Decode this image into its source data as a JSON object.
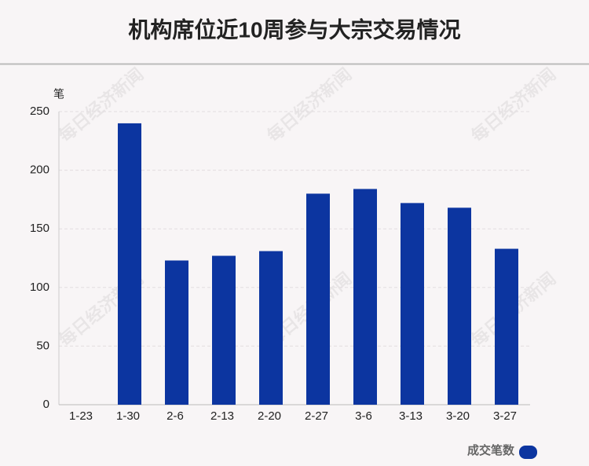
{
  "chart_data": {
    "type": "bar",
    "title": "机构席位近10周参与大宗交易情况",
    "y_unit": "笔",
    "categories": [
      "1-23",
      "1-30",
      "2-6",
      "2-13",
      "2-20",
      "2-27",
      "3-6",
      "3-13",
      "3-20",
      "3-27"
    ],
    "series": [
      {
        "name": "成交笔数",
        "color": "#0c35a0",
        "values": [
          0,
          240,
          123,
          127,
          131,
          180,
          184,
          172,
          168,
          133
        ]
      }
    ],
    "ylim": [
      0,
      250
    ],
    "yticks": [
      0,
      50,
      100,
      150,
      200,
      250
    ],
    "grid": true,
    "legend": "bottom-right",
    "watermark": "每日经济新闻"
  }
}
